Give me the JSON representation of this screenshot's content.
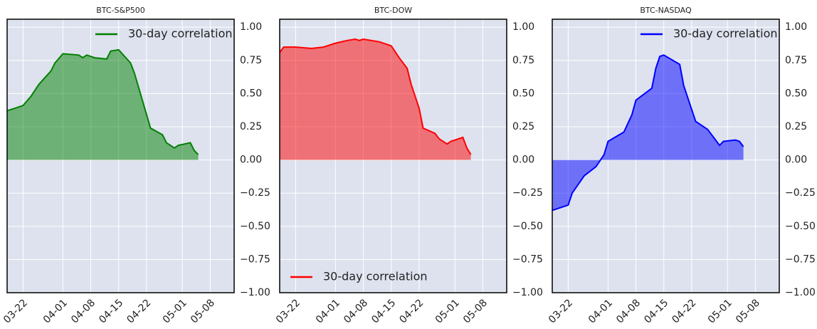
{
  "chart_data": [
    {
      "type": "area",
      "title": "BTC-S&P500",
      "x": [
        "03-18",
        "03-20",
        "03-22",
        "03-24",
        "03-26",
        "03-29",
        "03-30",
        "04-01",
        "04-05",
        "04-06",
        "04-07",
        "04-09",
        "04-12",
        "04-13",
        "04-15",
        "04-18",
        "04-19",
        "04-23",
        "04-26",
        "04-27",
        "04-29",
        "04-30",
        "05-03",
        "05-04",
        "05-05"
      ],
      "series": [
        {
          "name": "30-day correlation",
          "color": "#008000",
          "values": [
            0.37,
            0.39,
            0.41,
            0.48,
            0.57,
            0.67,
            0.73,
            0.8,
            0.79,
            0.77,
            0.79,
            0.77,
            0.76,
            0.82,
            0.83,
            0.73,
            0.65,
            0.24,
            0.19,
            0.13,
            0.09,
            0.11,
            0.13,
            0.07,
            0.04
          ]
        }
      ],
      "xlim": [
        "03-18",
        "05-14"
      ],
      "xticks": [
        "03-22",
        "04-01",
        "04-08",
        "04-15",
        "04-22",
        "05-01",
        "05-08"
      ],
      "ylim": [
        -1.0,
        1.06
      ],
      "yticks": [
        {
          "value": 1,
          "label": "1.00"
        },
        {
          "value": 0.75,
          "label": "0.75"
        },
        {
          "value": 0.5,
          "label": "0.50"
        },
        {
          "value": 0.25,
          "label": "0.25"
        },
        {
          "value": 0,
          "label": "0.00"
        },
        {
          "value": -0.25,
          "label": "−0.25"
        },
        {
          "value": -0.5,
          "label": "−0.50"
        },
        {
          "value": -0.75,
          "label": "−0.75"
        },
        {
          "value": -1,
          "label": "−1.00"
        }
      ],
      "grid": true,
      "legend": "upper right"
    },
    {
      "type": "area",
      "title": "BTC-DOW",
      "x": [
        "03-18",
        "03-19",
        "03-22",
        "03-26",
        "03-29",
        "04-01",
        "04-04",
        "04-06",
        "04-07",
        "04-08",
        "04-12",
        "04-15",
        "04-17",
        "04-19",
        "04-20",
        "04-22",
        "04-23",
        "04-26",
        "04-27",
        "04-29",
        "04-30",
        "05-03",
        "05-04",
        "05-05"
      ],
      "series": [
        {
          "name": "30-day correlation",
          "color": "#ff0000",
          "values": [
            0.81,
            0.85,
            0.85,
            0.84,
            0.85,
            0.88,
            0.9,
            0.91,
            0.9,
            0.91,
            0.89,
            0.86,
            0.77,
            0.69,
            0.57,
            0.39,
            0.24,
            0.2,
            0.16,
            0.12,
            0.14,
            0.17,
            0.09,
            0.04
          ]
        }
      ],
      "xlim": [
        "03-18",
        "05-14"
      ],
      "xticks": [
        "03-22",
        "04-01",
        "04-08",
        "04-15",
        "04-22",
        "05-01",
        "05-08"
      ],
      "ylim": [
        -1.0,
        1.06
      ],
      "yticks": [
        {
          "value": 1,
          "label": "1.00"
        },
        {
          "value": 0.75,
          "label": "0.75"
        },
        {
          "value": 0.5,
          "label": "0.50"
        },
        {
          "value": 0.25,
          "label": "0.25"
        },
        {
          "value": 0,
          "label": "0.00"
        },
        {
          "value": -0.25,
          "label": "−0.25"
        },
        {
          "value": -0.5,
          "label": "−0.50"
        },
        {
          "value": -0.75,
          "label": "−0.75"
        },
        {
          "value": -1,
          "label": "−1.00"
        }
      ],
      "grid": true,
      "legend": "lower left"
    },
    {
      "type": "area",
      "title": "BTC-NASDAQ",
      "x": [
        "03-18",
        "03-19",
        "03-22",
        "03-23",
        "03-26",
        "03-29",
        "03-31",
        "04-01",
        "04-05",
        "04-07",
        "04-08",
        "04-12",
        "04-13",
        "04-14",
        "04-15",
        "04-19",
        "04-20",
        "04-23",
        "04-26",
        "04-28",
        "04-29",
        "04-30",
        "05-03",
        "05-04",
        "05-05"
      ],
      "series": [
        {
          "name": "30-day correlation",
          "color": "#0000ff",
          "values": [
            -0.38,
            -0.37,
            -0.34,
            -0.25,
            -0.12,
            -0.05,
            0.04,
            0.14,
            0.21,
            0.34,
            0.45,
            0.54,
            0.69,
            0.78,
            0.79,
            0.72,
            0.56,
            0.29,
            0.23,
            0.15,
            0.11,
            0.14,
            0.15,
            0.14,
            0.1
          ]
        }
      ],
      "xlim": [
        "03-18",
        "05-14"
      ],
      "xticks": [
        "03-22",
        "04-01",
        "04-08",
        "04-15",
        "04-22",
        "05-01",
        "05-08"
      ],
      "ylim": [
        -1.0,
        1.06
      ],
      "yticks": [
        {
          "value": 1,
          "label": "1.00"
        },
        {
          "value": 0.75,
          "label": "0.75"
        },
        {
          "value": 0.5,
          "label": "0.50"
        },
        {
          "value": 0.25,
          "label": "0.25"
        },
        {
          "value": 0,
          "label": "0.00"
        },
        {
          "value": -0.25,
          "label": "−0.25"
        },
        {
          "value": -0.5,
          "label": "−0.50"
        },
        {
          "value": -0.75,
          "label": "−0.75"
        },
        {
          "value": -1,
          "label": "−1.00"
        }
      ],
      "grid": true,
      "legend": "upper right"
    }
  ]
}
